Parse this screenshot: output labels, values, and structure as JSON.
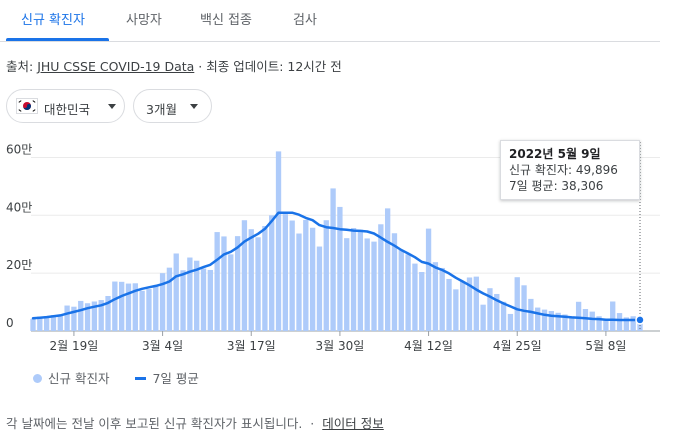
{
  "tabs": [
    {
      "label": "신규 확진자"
    },
    {
      "label": "사망자"
    },
    {
      "label": "백신 접종"
    },
    {
      "label": "검사"
    }
  ],
  "source": {
    "prefix": "출처: ",
    "link": "JHU CSSE COVID-19 Data",
    "suffix": " · 최종 업데이트: 12시간 전"
  },
  "filters": {
    "country": "대한민국",
    "period": "3개월"
  },
  "tooltip": {
    "date": "2022년 5월 9일",
    "cases": "신규 확진자: 49,896",
    "avg": "7일 평균: 38,306"
  },
  "legend": {
    "bars": "신규 확진자",
    "line": "7일 평균"
  },
  "footer": {
    "note": "각 날짜에는 전날 이후 보고된 신규 확진자가 표시됩니다.",
    "sep": "·",
    "link": "데이터 정보"
  },
  "colors": {
    "accent": "#1a73e8",
    "bar": "#aecbfa",
    "average_line": "#1a73e8"
  },
  "chart_data": {
    "type": "bar",
    "y_unit": "만",
    "ylim": [
      0,
      650000
    ],
    "yticks": [
      {
        "value": 0,
        "label": "0"
      },
      {
        "value": 200000,
        "label": "20만"
      },
      {
        "value": 400000,
        "label": "40만"
      },
      {
        "value": 600000,
        "label": "60만"
      }
    ],
    "xticks": [
      {
        "index": 6,
        "label": "2월 19일"
      },
      {
        "index": 19,
        "label": "3월 4일"
      },
      {
        "index": 32,
        "label": "3월 17일"
      },
      {
        "index": 45,
        "label": "3월 30일"
      },
      {
        "index": 58,
        "label": "4월 12일"
      },
      {
        "index": 71,
        "label": "4월 25일"
      },
      {
        "index": 84,
        "label": "5월 8일"
      }
    ],
    "series": [
      {
        "name": "신규 확진자",
        "type": "bar",
        "values": [
          42000,
          50000,
          51000,
          55000,
          55000,
          88000,
          84000,
          104000,
          96000,
          102000,
          107000,
          121000,
          171000,
          170000,
          164000,
          165000,
          139000,
          145000,
          158000,
          200000,
          219000,
          268000,
          210000,
          254000,
          243000,
          216000,
          211000,
          342000,
          327000,
          265000,
          328000,
          383000,
          352000,
          324000,
          363000,
          400000,
          621000,
          404000,
          382000,
          337000,
          384000,
          357000,
          292000,
          383000,
          493000,
          429000,
          321000,
          356000,
          350000,
          320000,
          309000,
          369000,
          424000,
          338000,
          280000,
          265000,
          233000,
          204000,
          354000,
          238000,
          218000,
          180000,
          144000,
          171000,
          185000,
          188000,
          91000,
          148000,
          128000,
          101000,
          59000,
          186000,
          158000,
          111000,
          81000,
          74000,
          69000,
          63000,
          57000,
          51000,
          101000,
          76000,
          67000,
          51000,
          42000,
          102000,
          62000,
          47000,
          51000,
          49896
        ],
        "bar_color": "#aecbfa"
      },
      {
        "name": "7일 평균",
        "type": "line",
        "values": [
          44000,
          46000,
          48000,
          51000,
          54000,
          60000,
          66000,
          72000,
          79000,
          84000,
          89000,
          97000,
          110000,
          121000,
          130000,
          139000,
          146000,
          151000,
          156000,
          162000,
          171000,
          189000,
          196000,
          205000,
          212000,
          221000,
          229000,
          246000,
          265000,
          274000,
          289000,
          309000,
          323000,
          336000,
          353000,
          380000,
          409000,
          409000,
          409000,
          402000,
          391000,
          383000,
          366000,
          359000,
          356000,
          352000,
          350000,
          347000,
          346000,
          344000,
          337000,
          323000,
          308000,
          295000,
          280000,
          268000,
          255000,
          239000,
          233000,
          220000,
          211000,
          199000,
          184000,
          171000,
          158000,
          143000,
          130000,
          119000,
          106000,
          95000,
          85000,
          75000,
          70000,
          66000,
          61000,
          56000,
          53000,
          51000,
          49000,
          47000,
          46000,
          44000,
          42000,
          41000,
          39000,
          39000,
          38000,
          38000,
          38000,
          38306
        ],
        "line_color": "#1a73e8"
      }
    ],
    "highlight_index": 89
  }
}
